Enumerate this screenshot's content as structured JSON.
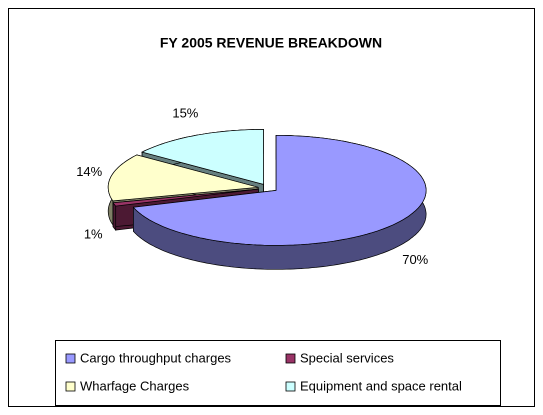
{
  "chart_data": {
    "type": "pie",
    "title": "FY 2005 REVENUE BREAKDOWN",
    "categories": [
      "Cargo throughput charges",
      "Special services",
      "Wharfage Charges",
      "Equipment and space rental"
    ],
    "values": [
      70,
      1,
      14,
      15
    ],
    "value_labels": [
      "70%",
      "1%",
      "14%",
      "15%"
    ],
    "colors": [
      "#9999ff",
      "#993366",
      "#ffffcc",
      "#ccffff"
    ],
    "legend": "bottom"
  }
}
